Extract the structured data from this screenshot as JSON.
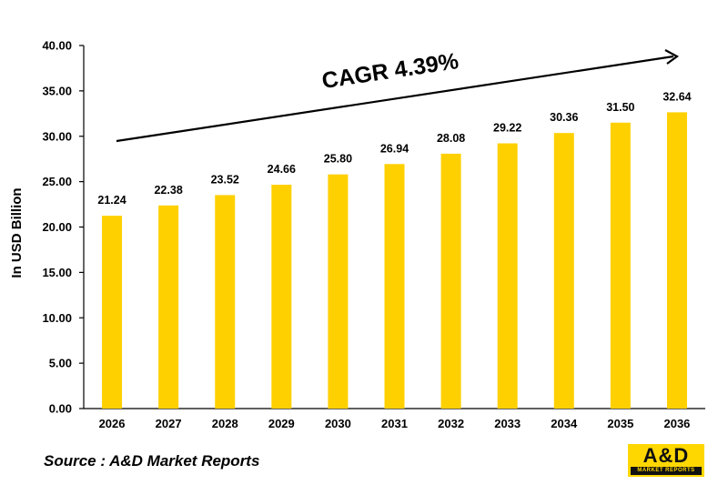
{
  "chart_data": {
    "type": "bar",
    "categories": [
      "2026",
      "2027",
      "2028",
      "2029",
      "2030",
      "2031",
      "2032",
      "2033",
      "2034",
      "2035",
      "2036"
    ],
    "values": [
      21.24,
      22.38,
      23.52,
      24.66,
      25.8,
      26.94,
      28.08,
      29.22,
      30.36,
      31.5,
      32.64
    ],
    "value_labels": [
      "21.24",
      "22.38",
      "23.52",
      "24.66",
      "25.80",
      "26.94",
      "28.08",
      "29.22",
      "30.36",
      "31.50",
      "32.64"
    ],
    "ylabel": "In USD Billion",
    "ylim": [
      0,
      40
    ],
    "yticks": [
      "0.00",
      "5.00",
      "10.00",
      "15.00",
      "20.00",
      "25.00",
      "30.00",
      "35.00",
      "40.00"
    ],
    "grid": false,
    "bar_color": "#ffd000",
    "annotation": "CAGR 4.39%"
  },
  "footer": {
    "source": "Source : A&D Market Reports",
    "logo_text": "A&D",
    "logo_subtext": "MARKET REPORTS"
  },
  "colors": {
    "brand": "#ffd700",
    "bar": "#ffd000",
    "axis": "#000000"
  }
}
